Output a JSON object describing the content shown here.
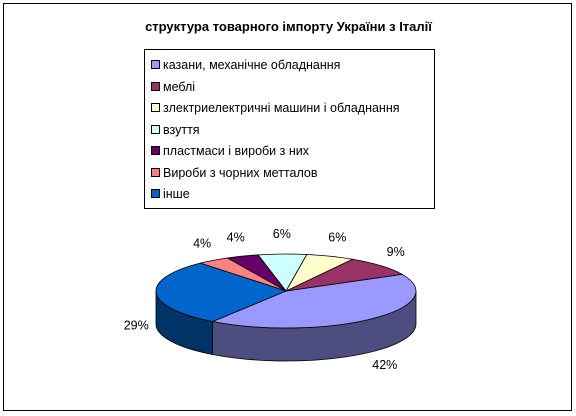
{
  "chart_data": {
    "type": "pie",
    "title": "структура товарного імпорту України з Італії",
    "categories": [
      "казани, механічне обладнання",
      "меблі",
      "злектриелектричні машини і обладнання",
      "взуття",
      "пластмаси і вироби з них",
      "Вироби з чорних метталов",
      "інше"
    ],
    "values": [
      42,
      9,
      6,
      6,
      4,
      4,
      29
    ],
    "value_labels": [
      "42%",
      "9%",
      "6%",
      "6%",
      "4%",
      "4%",
      "29%"
    ],
    "colors": [
      "#9999FF",
      "#993366",
      "#FFFFCC",
      "#CCFFFF",
      "#660066",
      "#FF8080",
      "#0066CC"
    ],
    "legend_position": "top",
    "three_d": true
  }
}
